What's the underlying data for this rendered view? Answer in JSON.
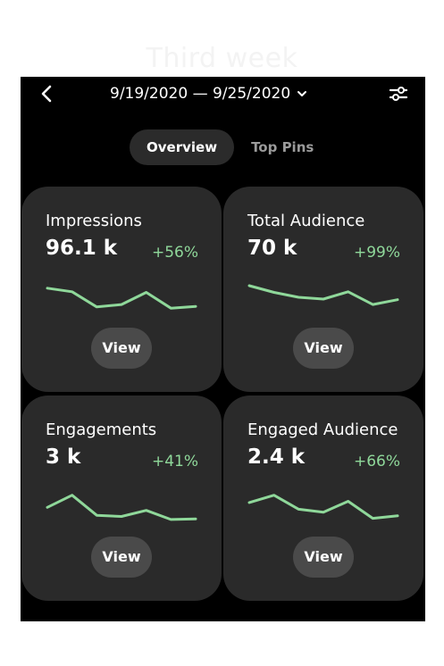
{
  "caption": "Third week",
  "header": {
    "back_icon": "arrow-left-icon",
    "date_range": "9/19/2020 — 9/25/2020",
    "dropdown_icon": "chevron-down-icon",
    "filter_icon": "sliders-icon"
  },
  "tabs": [
    {
      "label": "Overview",
      "active": true
    },
    {
      "label": "Top Pins",
      "active": false
    }
  ],
  "colors": {
    "accent_green": "#8fd89a",
    "card_bg": "#2a2a2a",
    "screen_bg": "#000000"
  },
  "cards": [
    {
      "label": "Impressions",
      "value": "96.1 k",
      "delta": "+56%",
      "view_label": "View",
      "trend": [
        4.3,
        3.7,
        1.2,
        1.6,
        3.6,
        1.0,
        1.3
      ]
    },
    {
      "label": "Total Audience",
      "value": "70 k",
      "delta": "+99%",
      "view_label": "View",
      "trend": [
        4.7,
        3.6,
        2.8,
        2.5,
        3.7,
        1.6,
        2.4
      ]
    },
    {
      "label": "Engagements",
      "value": "3 k",
      "delta": "+41%",
      "view_label": "View",
      "trend": [
        2.6,
        4.6,
        1.3,
        1.1,
        2.1,
        0.6,
        0.7
      ]
    },
    {
      "label": "Engaged Audience",
      "value": "2.4 k",
      "delta": "+66%",
      "view_label": "View",
      "trend": [
        3.4,
        4.6,
        2.3,
        1.8,
        3.6,
        0.8,
        1.2
      ]
    }
  ]
}
